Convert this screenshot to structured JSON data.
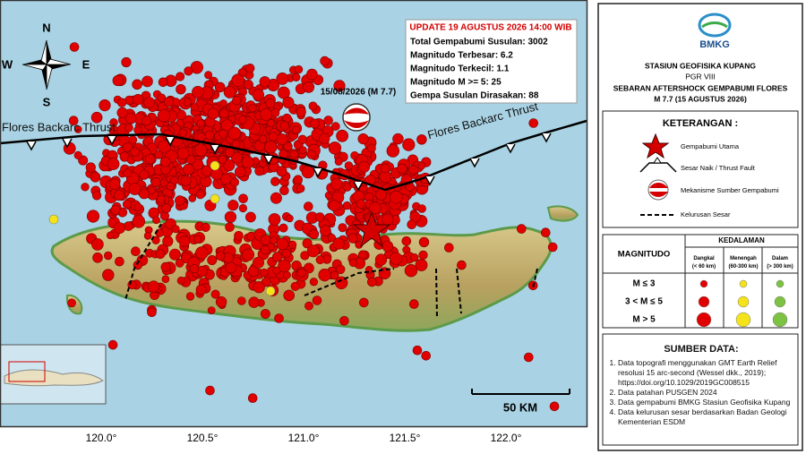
{
  "map": {
    "compass": {
      "n": "N",
      "s": "S",
      "e": "E",
      "w": "W"
    },
    "fault_labels": [
      "Flores Backarc Thrust",
      "Flores Backarc Thrust"
    ],
    "mainshock_label": "15/08/2026 (M 7.7)",
    "update_box": {
      "title": "UPDATE 19 AGUSTUS 2026 14:00 WIB",
      "lines": [
        "Total Gempabumi Susulan: 3002",
        "Magnitudo Terbesar: 6.2",
        "Magnitudo Terkecil: 1.1",
        "Magnitudo M >= 5: 25",
        "Gempa Susulan Dirasakan: 88"
      ]
    },
    "scale_bar": "50 KM",
    "longitude_labels": [
      "120.0°",
      "120.5°",
      "121.0°",
      "121.5°",
      "122.0°"
    ]
  },
  "legend": {
    "logo": "BMKG",
    "header": [
      "STASIUN GEOFISIKA KUPANG",
      "PGR VIII",
      "SEBARAN AFTERSHOCK GEMPABUMI FLORES",
      "M 7.7 (15 AGUSTUS 2026)"
    ],
    "keterangan": {
      "title": "KETERANGAN :",
      "items": [
        "Gempabumi Utama",
        "Sesar Naik / Thrust Fault",
        "Mekanisme Sumber Gempabumi",
        "Kelurusan Sesar"
      ]
    },
    "magnitude_table": {
      "magnitude_header": "MAGNITUDO",
      "depth_header": "KEDALAMAN",
      "depths": [
        "Dangkal (< 60 km)",
        "Menengah (60-300 km)",
        "Dalam (> 300 km)"
      ],
      "rows": [
        "M ≤ 3",
        "3 < M ≤ 5",
        "M > 5"
      ]
    },
    "sources": {
      "title": "SUMBER DATA:",
      "items": [
        "Data topografi menggunakan GMT Earth Relief resolusi 15 arc-second (Wessel dkk., 2019); https://doi.org/10.1029/2019GC008515",
        "Data patahan PUSGEN 2024",
        "Data gempabumi BMKG Stasiun Geofisika Kupang",
        "Data kelurusan sesar berdasarkan Badan Geologi Kementerian ESDM"
      ]
    }
  }
}
